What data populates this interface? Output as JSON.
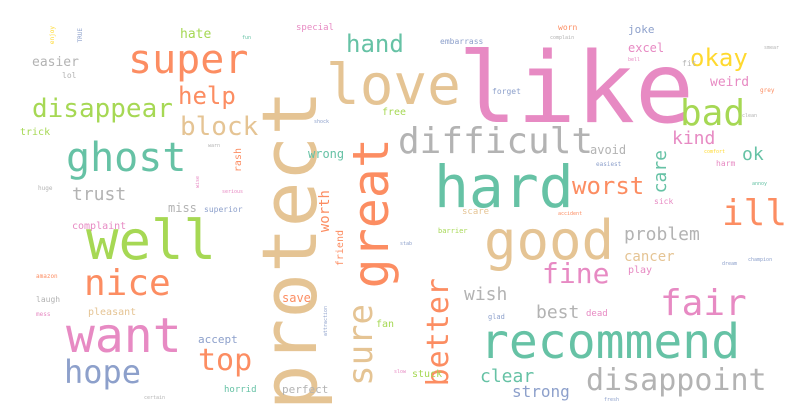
{
  "palette": {
    "pink": "#e78ac3",
    "orange": "#fc8d62",
    "teal": "#66c2a5",
    "green": "#a6d854",
    "tan": "#e5c494",
    "blue": "#8da0cb",
    "gray": "#b3b3b3",
    "yellow": "#ffd92f"
  },
  "words": [
    {
      "text": "like"
    },
    {
      "text": "protect"
    },
    {
      "text": "love"
    },
    {
      "text": "hard"
    },
    {
      "text": "great"
    },
    {
      "text": "good"
    },
    {
      "text": "well"
    },
    {
      "text": "recommend"
    },
    {
      "text": "want"
    },
    {
      "text": "ghost"
    },
    {
      "text": "super"
    },
    {
      "text": "difficult"
    },
    {
      "text": "bad"
    },
    {
      "text": "fair"
    },
    {
      "text": "disappoint"
    },
    {
      "text": "nice"
    },
    {
      "text": "better"
    },
    {
      "text": "sure"
    },
    {
      "text": "disappear"
    },
    {
      "text": "hope"
    },
    {
      "text": "top"
    },
    {
      "text": "fine"
    },
    {
      "text": "ill"
    },
    {
      "text": "worst"
    },
    {
      "text": "block"
    },
    {
      "text": "help"
    },
    {
      "text": "hand"
    },
    {
      "text": "okay"
    },
    {
      "text": "kind"
    },
    {
      "text": "problem"
    },
    {
      "text": "wish"
    },
    {
      "text": "clear"
    },
    {
      "text": "best"
    },
    {
      "text": "strong"
    },
    {
      "text": "trust"
    },
    {
      "text": "cancer"
    },
    {
      "text": "weird"
    },
    {
      "text": "care"
    },
    {
      "text": "ok"
    },
    {
      "text": "easier"
    },
    {
      "text": "worth"
    },
    {
      "text": "wrong"
    },
    {
      "text": "avoid"
    },
    {
      "text": "excel"
    },
    {
      "text": "joke"
    },
    {
      "text": "hate"
    },
    {
      "text": "miss"
    },
    {
      "text": "save"
    },
    {
      "text": "play"
    },
    {
      "text": "trick"
    },
    {
      "text": "friend"
    },
    {
      "text": "complaint"
    },
    {
      "text": "pleasant"
    },
    {
      "text": "accept"
    },
    {
      "text": "perfect"
    },
    {
      "text": "laugh"
    },
    {
      "text": "free"
    },
    {
      "text": "rash"
    },
    {
      "text": "scare"
    },
    {
      "text": "fan"
    },
    {
      "text": "stuck"
    },
    {
      "text": "dead"
    },
    {
      "text": "horrid"
    },
    {
      "text": "lol"
    },
    {
      "text": "forget"
    },
    {
      "text": "embarrass"
    },
    {
      "text": "special"
    },
    {
      "text": "worn"
    },
    {
      "text": "fit"
    },
    {
      "text": "harm"
    },
    {
      "text": "sick"
    },
    {
      "text": "superior"
    },
    {
      "text": "glad"
    },
    {
      "text": "barrier"
    },
    {
      "text": "easiest"
    },
    {
      "text": "huge"
    },
    {
      "text": "amazon"
    },
    {
      "text": "mess"
    },
    {
      "text": "grey"
    },
    {
      "text": "smear"
    },
    {
      "text": "TRUE"
    },
    {
      "text": "warn"
    },
    {
      "text": "shock"
    },
    {
      "text": "fun"
    },
    {
      "text": "bell"
    },
    {
      "text": "complain"
    },
    {
      "text": "comfort"
    },
    {
      "text": "annoy"
    },
    {
      "text": "accident"
    },
    {
      "text": "stab"
    },
    {
      "text": "dream"
    },
    {
      "text": "champion"
    },
    {
      "text": "slow"
    },
    {
      "text": "certain"
    },
    {
      "text": "fresh"
    },
    {
      "text": "serious"
    },
    {
      "text": "wise"
    },
    {
      "text": "attraction"
    },
    {
      "text": "enjoy"
    },
    {
      "text": "clean"
    }
  ]
}
